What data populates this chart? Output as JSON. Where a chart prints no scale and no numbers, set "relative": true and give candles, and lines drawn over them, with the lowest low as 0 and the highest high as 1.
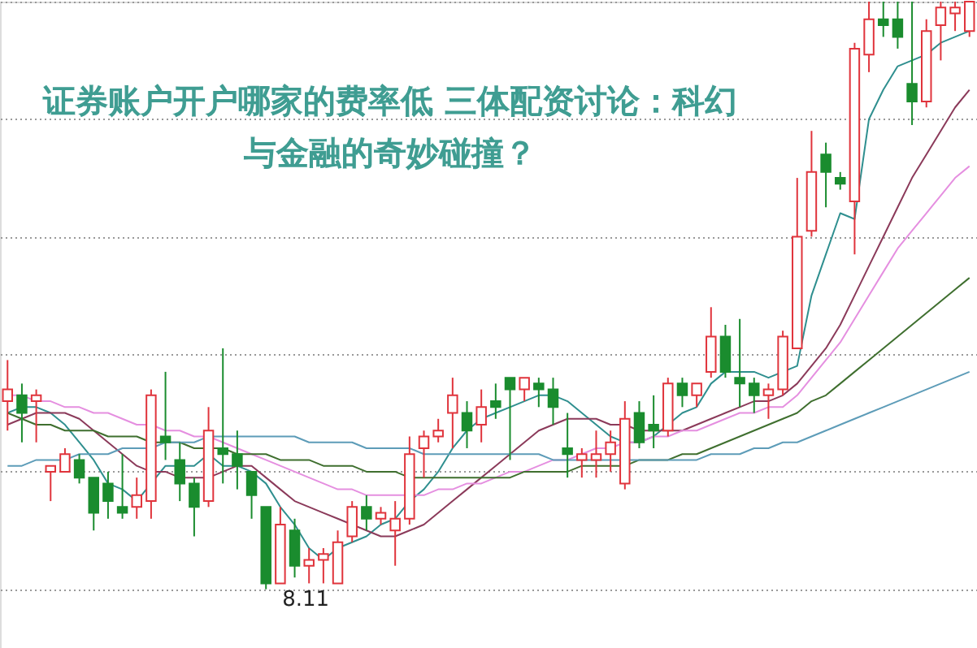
{
  "chart_data": {
    "type": "candlestick",
    "title": "证券账户开户哪家的费率低 三体配资讨论：科幻与金融的奇妙碰撞？",
    "relative": true,
    "grid": "y",
    "categories": [
      null,
      null,
      null,
      null,
      null,
      null,
      null,
      null,
      null,
      null,
      null,
      null,
      null,
      null,
      null,
      null,
      null,
      null,
      null,
      null,
      null,
      null,
      null,
      null,
      null,
      null,
      null,
      null,
      null,
      null,
      null,
      null,
      null,
      null,
      null,
      null,
      null,
      null,
      null,
      null,
      null,
      null,
      null,
      null,
      null,
      null,
      null,
      null,
      null,
      null,
      null,
      null,
      null,
      null,
      null,
      null,
      null,
      null,
      null,
      null,
      null,
      null,
      null,
      null,
      null,
      null,
      null,
      null
    ],
    "ohlc": [
      [
        0.32,
        0.39,
        0.27,
        0.34
      ],
      [
        0.33,
        0.35,
        0.25,
        0.3
      ],
      [
        0.32,
        0.34,
        0.25,
        0.33
      ],
      [
        0.2,
        0.21,
        0.15,
        0.21
      ],
      [
        0.2,
        0.24,
        0.2,
        0.23
      ],
      [
        0.22,
        0.23,
        0.18,
        0.19
      ],
      [
        0.19,
        0.19,
        0.1,
        0.13
      ],
      [
        0.18,
        0.2,
        0.12,
        0.15
      ],
      [
        0.14,
        0.23,
        0.12,
        0.13
      ],
      [
        0.14,
        0.19,
        0.12,
        0.16
      ],
      [
        0.15,
        0.34,
        0.12,
        0.33
      ],
      [
        0.26,
        0.37,
        0.22,
        0.25
      ],
      [
        0.22,
        0.25,
        0.15,
        0.18
      ],
      [
        0.18,
        0.19,
        0.09,
        0.14
      ],
      [
        0.15,
        0.31,
        0.14,
        0.27
      ],
      [
        0.24,
        0.41,
        0.18,
        0.23
      ],
      [
        0.23,
        0.27,
        0.17,
        0.21
      ],
      [
        0.2,
        0.2,
        0.12,
        0.16
      ],
      [
        0.14,
        0.14,
        0.0,
        0.01
      ],
      [
        0.01,
        0.14,
        0.01,
        0.11
      ],
      [
        0.1,
        0.12,
        0.02,
        0.04
      ],
      [
        0.04,
        0.07,
        0.01,
        0.05
      ],
      [
        0.05,
        0.07,
        0.01,
        0.06
      ],
      [
        0.01,
        0.1,
        0.01,
        0.08
      ],
      [
        0.09,
        0.15,
        0.08,
        0.14
      ],
      [
        0.14,
        0.16,
        0.1,
        0.12
      ],
      [
        0.12,
        0.14,
        0.11,
        0.13
      ],
      [
        0.1,
        0.15,
        0.04,
        0.12
      ],
      [
        0.12,
        0.26,
        0.11,
        0.23
      ],
      [
        0.24,
        0.27,
        0.19,
        0.26
      ],
      [
        0.26,
        0.29,
        0.25,
        0.27
      ],
      [
        0.3,
        0.36,
        0.24,
        0.33
      ],
      [
        0.3,
        0.32,
        0.24,
        0.27
      ],
      [
        0.28,
        0.34,
        0.25,
        0.31
      ],
      [
        0.32,
        0.35,
        0.29,
        0.31
      ],
      [
        0.36,
        0.36,
        0.22,
        0.34
      ],
      [
        0.34,
        0.36,
        0.32,
        0.36
      ],
      [
        0.35,
        0.36,
        0.31,
        0.34
      ],
      [
        0.34,
        0.36,
        0.28,
        0.31
      ],
      [
        0.24,
        0.3,
        0.19,
        0.23
      ],
      [
        0.22,
        0.24,
        0.19,
        0.23
      ],
      [
        0.22,
        0.27,
        0.19,
        0.23
      ],
      [
        0.23,
        0.27,
        0.2,
        0.25
      ],
      [
        0.18,
        0.32,
        0.17,
        0.29
      ],
      [
        0.3,
        0.32,
        0.24,
        0.25
      ],
      [
        0.28,
        0.33,
        0.24,
        0.27
      ],
      [
        0.27,
        0.36,
        0.26,
        0.35
      ],
      [
        0.35,
        0.36,
        0.31,
        0.33
      ],
      [
        0.33,
        0.35,
        0.31,
        0.35
      ],
      [
        0.37,
        0.48,
        0.36,
        0.43
      ],
      [
        0.43,
        0.45,
        0.36,
        0.37
      ],
      [
        0.36,
        0.46,
        0.31,
        0.35
      ],
      [
        0.35,
        0.36,
        0.3,
        0.33
      ],
      [
        0.33,
        0.35,
        0.29,
        0.34
      ],
      [
        0.34,
        0.44,
        0.33,
        0.43
      ],
      [
        0.41,
        0.7,
        0.41,
        0.6
      ],
      [
        0.61,
        0.78,
        0.6,
        0.71
      ],
      [
        0.74,
        0.76,
        0.65,
        0.71
      ],
      [
        0.7,
        0.71,
        0.68,
        0.69
      ],
      [
        0.66,
        0.93,
        0.57,
        0.92
      ],
      [
        0.91,
        1.0,
        0.88,
        0.97
      ],
      [
        0.97,
        1.0,
        0.94,
        0.96
      ],
      [
        0.97,
        1.0,
        0.92,
        0.94
      ],
      [
        0.86,
        1.0,
        0.79,
        0.83
      ],
      [
        0.83,
        0.97,
        0.82,
        0.95
      ],
      [
        0.96,
        1.0,
        0.9,
        0.99
      ],
      [
        0.98,
        1.0,
        0.95,
        0.99
      ],
      [
        0.95,
        1.0,
        0.94,
        1.0
      ]
    ],
    "colors": [
      "#e0343c",
      "#1a8c2e",
      "#e0343c",
      "#e0343c",
      "#e0343c",
      "#1a8c2e",
      "#1a8c2e",
      "#1a8c2e",
      "#1a8c2e",
      "#e0343c",
      "#e0343c",
      "#1a8c2e",
      "#1a8c2e",
      "#1a8c2e",
      "#e0343c",
      "#1a8c2e",
      "#1a8c2e",
      "#1a8c2e",
      "#1a8c2e",
      "#e0343c",
      "#1a8c2e",
      "#e0343c",
      "#e0343c",
      "#e0343c",
      "#e0343c",
      "#1a8c2e",
      "#e0343c",
      "#e0343c",
      "#e0343c",
      "#e0343c",
      "#e0343c",
      "#e0343c",
      "#1a8c2e",
      "#e0343c",
      "#1a8c2e",
      "#1a8c2e",
      "#e0343c",
      "#1a8c2e",
      "#1a8c2e",
      "#1a8c2e",
      "#e0343c",
      "#e0343c",
      "#e0343c",
      "#e0343c",
      "#1a8c2e",
      "#1a8c2e",
      "#e0343c",
      "#1a8c2e",
      "#e0343c",
      "#e0343c",
      "#1a8c2e",
      "#1a8c2e",
      "#1a8c2e",
      "#e0343c",
      "#e0343c",
      "#e0343c",
      "#e0343c",
      "#1a8c2e",
      "#1a8c2e",
      "#e0343c",
      "#e0343c",
      "#1a8c2e",
      "#1a8c2e",
      "#1a8c2e",
      "#e0343c",
      "#e0343c",
      "#e0343c",
      "#e0343c"
    ],
    "series": [
      {
        "type": "line",
        "color": "#2f8f8f",
        "values": [
          0.3,
          0.31,
          0.31,
          0.3,
          0.28,
          0.25,
          0.22,
          0.18,
          0.17,
          0.15,
          0.18,
          0.21,
          0.21,
          0.21,
          0.23,
          0.21,
          0.21,
          0.2,
          0.18,
          0.14,
          0.11,
          0.07,
          0.05,
          0.07,
          0.08,
          0.09,
          0.11,
          0.12,
          0.15,
          0.17,
          0.2,
          0.24,
          0.27,
          0.29,
          0.3,
          0.31,
          0.32,
          0.33,
          0.33,
          0.32,
          0.3,
          0.28,
          0.26,
          0.25,
          0.25,
          0.26,
          0.28,
          0.3,
          0.31,
          0.35,
          0.37,
          0.37,
          0.37,
          0.36,
          0.37,
          0.38,
          0.5,
          0.57,
          0.64,
          0.63,
          0.8,
          0.85,
          0.89,
          0.9,
          0.91,
          0.93,
          0.94,
          0.95
        ]
      },
      {
        "type": "line",
        "color": "#8b3a5a",
        "values": [
          0.28,
          0.29,
          0.3,
          0.3,
          0.3,
          0.29,
          0.27,
          0.25,
          0.23,
          0.21,
          0.2,
          0.2,
          0.19,
          0.19,
          0.19,
          0.2,
          0.21,
          0.21,
          0.19,
          0.17,
          0.15,
          0.14,
          0.13,
          0.12,
          0.11,
          0.1,
          0.09,
          0.09,
          0.1,
          0.11,
          0.13,
          0.15,
          0.17,
          0.19,
          0.21,
          0.23,
          0.25,
          0.27,
          0.28,
          0.29,
          0.29,
          0.29,
          0.28,
          0.28,
          0.27,
          0.27,
          0.27,
          0.27,
          0.28,
          0.29,
          0.3,
          0.31,
          0.32,
          0.32,
          0.33,
          0.35,
          0.38,
          0.41,
          0.45,
          0.5,
          0.55,
          0.6,
          0.65,
          0.7,
          0.74,
          0.78,
          0.82,
          0.85
        ]
      },
      {
        "type": "line",
        "color": "#e58fe0",
        "values": [
          0.33,
          0.33,
          0.32,
          0.32,
          0.31,
          0.31,
          0.3,
          0.3,
          0.29,
          0.28,
          0.28,
          0.27,
          0.27,
          0.26,
          0.26,
          0.25,
          0.24,
          0.23,
          0.22,
          0.21,
          0.2,
          0.19,
          0.18,
          0.17,
          0.17,
          0.16,
          0.16,
          0.16,
          0.16,
          0.16,
          0.17,
          0.17,
          0.18,
          0.18,
          0.19,
          0.2,
          0.2,
          0.21,
          0.22,
          0.22,
          0.23,
          0.24,
          0.24,
          0.25,
          0.25,
          0.26,
          0.26,
          0.27,
          0.27,
          0.28,
          0.29,
          0.3,
          0.3,
          0.31,
          0.31,
          0.33,
          0.36,
          0.39,
          0.42,
          0.46,
          0.5,
          0.54,
          0.58,
          0.61,
          0.64,
          0.67,
          0.7,
          0.72
        ]
      },
      {
        "type": "line",
        "color": "#3f6f2f",
        "values": [
          0.3,
          0.29,
          0.28,
          0.28,
          0.27,
          0.27,
          0.27,
          0.26,
          0.26,
          0.26,
          0.25,
          0.25,
          0.25,
          0.24,
          0.24,
          0.24,
          0.23,
          0.23,
          0.23,
          0.22,
          0.22,
          0.22,
          0.21,
          0.21,
          0.21,
          0.2,
          0.2,
          0.2,
          0.19,
          0.19,
          0.19,
          0.19,
          0.19,
          0.19,
          0.19,
          0.19,
          0.2,
          0.2,
          0.2,
          0.2,
          0.21,
          0.21,
          0.21,
          0.21,
          0.22,
          0.22,
          0.22,
          0.23,
          0.23,
          0.24,
          0.25,
          0.26,
          0.27,
          0.28,
          0.29,
          0.3,
          0.32,
          0.33,
          0.35,
          0.37,
          0.39,
          0.41,
          0.43,
          0.45,
          0.47,
          0.49,
          0.51,
          0.53
        ]
      },
      {
        "type": "line",
        "color": "#5d9cb8",
        "values": [
          0.21,
          0.21,
          0.22,
          0.22,
          0.22,
          0.23,
          0.23,
          0.23,
          0.24,
          0.24,
          0.24,
          0.25,
          0.25,
          0.25,
          0.26,
          0.26,
          0.26,
          0.26,
          0.26,
          0.26,
          0.26,
          0.25,
          0.25,
          0.25,
          0.25,
          0.24,
          0.24,
          0.24,
          0.24,
          0.23,
          0.23,
          0.23,
          0.23,
          0.23,
          0.23,
          0.23,
          0.23,
          0.23,
          0.22,
          0.22,
          0.22,
          0.22,
          0.22,
          0.22,
          0.22,
          0.22,
          0.22,
          0.22,
          0.22,
          0.23,
          0.23,
          0.23,
          0.24,
          0.24,
          0.25,
          0.25,
          0.26,
          0.27,
          0.28,
          0.29,
          0.3,
          0.31,
          0.32,
          0.33,
          0.34,
          0.35,
          0.36,
          0.37
        ]
      }
    ],
    "annotations": [
      {
        "text": "8.11",
        "y": 0.0
      }
    ]
  }
}
